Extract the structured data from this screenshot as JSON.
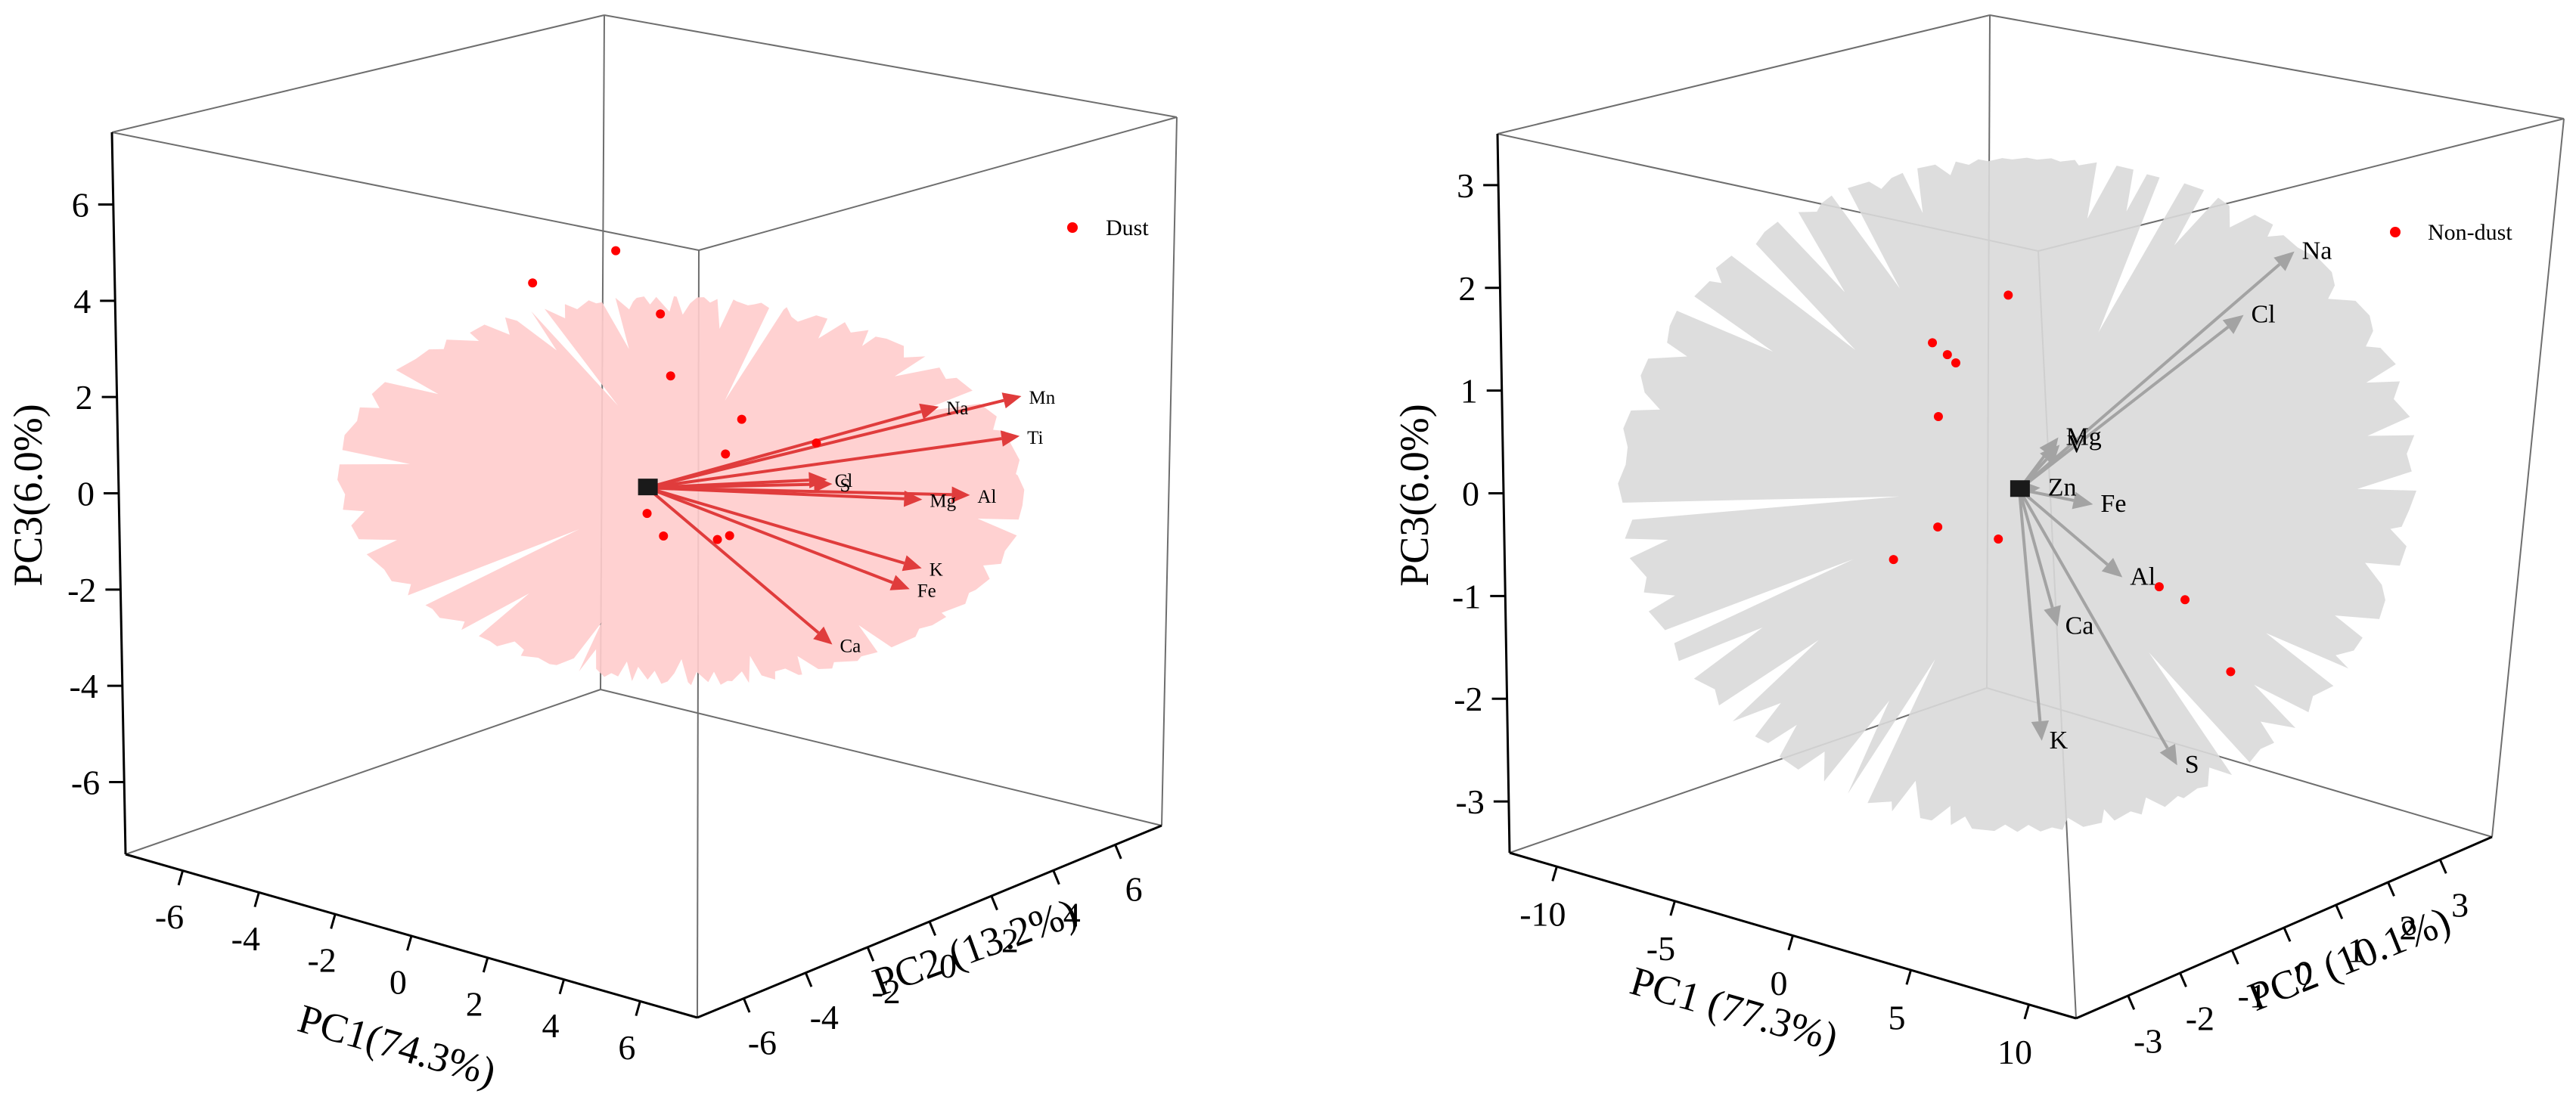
{
  "chart_data": [
    {
      "type": "scatter",
      "subtype": "3d-pca-biplot",
      "legend": {
        "label": "Dust",
        "color": "#ff0000",
        "position": "top-right"
      },
      "ellipse_color": "#ffcccc",
      "loading_color": "#e03c3c",
      "axes": {
        "pc1": {
          "label": "PC1(74.3%)",
          "range": [
            -7.5,
            7.5
          ],
          "ticks": [
            -6,
            -4,
            -2,
            0,
            2,
            4,
            6
          ]
        },
        "pc2": {
          "label": "PC2 (13.2%)",
          "range": [
            -7.5,
            7.5
          ],
          "ticks": [
            -6,
            -4,
            -2,
            0,
            2,
            4,
            6
          ]
        },
        "pc3": {
          "label": "PC3(6.0%)",
          "range": [
            -7.5,
            7.5
          ],
          "ticks": [
            -6,
            -4,
            -2,
            0,
            2,
            4,
            6
          ]
        }
      },
      "ellipse": {
        "center": [
          0.5,
          0.5,
          0
        ],
        "radii": [
          7.2,
          6.5,
          3.6
        ]
      },
      "scores": [
        [
          -6.2,
          3.8,
          2.5
        ],
        [
          -4.7,
          4.6,
          3.3
        ],
        [
          -3.1,
          4.1,
          2.3
        ],
        [
          -1.9,
          3.0,
          1.4
        ],
        [
          -1.2,
          4.4,
          0.3
        ],
        [
          -0.2,
          2.7,
          0.1
        ],
        [
          -1.5,
          1.8,
          -1.2
        ],
        [
          -0.4,
          1.0,
          -1.3
        ],
        [
          0.6,
          1.5,
          -1.3
        ],
        [
          1.5,
          0.8,
          -0.9
        ],
        [
          1.6,
          3.4,
          0.5
        ]
      ],
      "loadings": [
        {
          "name": "Na",
          "xyz": [
            4.3,
            4.0,
            1.6
          ]
        },
        {
          "name": "Mn",
          "xyz": [
            5.8,
            4.8,
            1.9
          ]
        },
        {
          "name": "Ti",
          "xyz": [
            6.1,
            4.4,
            1.2
          ]
        },
        {
          "name": "Al",
          "xyz": [
            6.3,
            2.6,
            0.4
          ]
        },
        {
          "name": "Mg",
          "xyz": [
            5.3,
            2.3,
            0.2
          ]
        },
        {
          "name": "S",
          "xyz": [
            3.6,
            1.5,
            0.4
          ]
        },
        {
          "name": "Cl",
          "xyz": [
            3.3,
            1.7,
            0.4
          ]
        },
        {
          "name": "K",
          "xyz": [
            5.8,
            1.7,
            -1.0
          ]
        },
        {
          "name": "Fe",
          "xyz": [
            5.9,
            1.2,
            -1.3
          ]
        },
        {
          "name": "Ca",
          "xyz": [
            5.2,
            -0.4,
            -2.2
          ]
        }
      ]
    },
    {
      "type": "scatter",
      "subtype": "3d-pca-biplot",
      "legend": {
        "label": "Non-dust",
        "color": "#ff0000",
        "position": "top-right"
      },
      "ellipse_color": "#d9d9d9",
      "loading_color": "#a3a3a3",
      "axes": {
        "pc1": {
          "label": "PC1 (77.3%)",
          "range": [
            -12,
            12
          ],
          "ticks": [
            -10,
            -5,
            0,
            5,
            10
          ]
        },
        "pc2": {
          "label": "PC2 (10.1%)",
          "range": [
            -4,
            4
          ],
          "ticks": [
            -3,
            -2,
            -1,
            0,
            1,
            2,
            3
          ]
        },
        "pc3": {
          "label": "PC3(6.0%)",
          "range": [
            -3.5,
            3.5
          ],
          "ticks": [
            -3,
            -2,
            -1,
            0,
            1,
            2,
            3
          ]
        }
      },
      "ellipse": {
        "center": [
          0,
          0,
          0
        ],
        "radii": [
          13.2,
          4.4,
          3.1
        ]
      },
      "scores": [
        [
          -4.1,
          0.1,
          1.2
        ],
        [
          -5.3,
          0.8,
          0.9
        ],
        [
          -4.4,
          0.6,
          0.9
        ],
        [
          -6.2,
          1.0,
          0.2
        ],
        [
          -5.4,
          0.7,
          -0.8
        ],
        [
          -6.3,
          0.3,
          -1.1
        ],
        [
          -2.2,
          0.5,
          -0.7
        ],
        [
          1.6,
          -0.8,
          2.1
        ],
        [
          3.9,
          0.9,
          -0.9
        ],
        [
          8.6,
          -0.5,
          -0.5
        ],
        [
          8.9,
          0.2,
          -1.3
        ]
      ],
      "loadings": [
        {
          "name": "Na",
          "xyz": [
            5.6,
            2.3,
            2.2
          ]
        },
        {
          "name": "Cl",
          "xyz": [
            4.6,
            1.9,
            1.6
          ]
        },
        {
          "name": "Mg",
          "xyz": [
            0.9,
            0.3,
            0.5
          ]
        },
        {
          "name": "V",
          "xyz": [
            0.7,
            0.4,
            0.4
          ]
        },
        {
          "name": "Zn",
          "xyz": [
            0.4,
            0.2,
            0.0
          ]
        },
        {
          "name": "Fe",
          "xyz": [
            2.2,
            0.4,
            -0.1
          ]
        },
        {
          "name": "Al",
          "xyz": [
            3.8,
            0.3,
            -0.7
          ]
        },
        {
          "name": "Ca",
          "xyz": [
            2.0,
            -0.1,
            -1.2
          ]
        },
        {
          "name": "K",
          "xyz": [
            3.1,
            -0.8,
            -2.1
          ]
        },
        {
          "name": "S",
          "xyz": [
            5.4,
            0.7,
            -2.5
          ]
        }
      ]
    }
  ]
}
